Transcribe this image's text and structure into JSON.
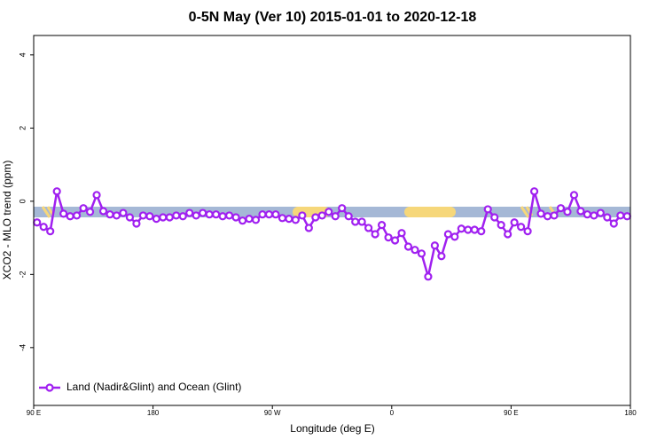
{
  "chart_data": {
    "type": "line",
    "title": "0-5N May (Ver 10)   2015-01-01 to 2020-12-18",
    "x_label": "Longitude (deg E)",
    "y_label": "XCO2 - MLO trend (ppm)",
    "x": [
      92.5,
      97.5,
      102.5,
      107.5,
      112.5,
      117.5,
      122.5,
      127.5,
      132.5,
      137.5,
      142.5,
      147.5,
      152.5,
      157.5,
      162.5,
      167.5,
      172.5,
      177.5,
      182.5,
      187.5,
      192.5,
      197.5,
      202.5,
      207.5,
      212.5,
      217.5,
      222.5,
      227.5,
      232.5,
      237.5,
      242.5,
      247.5,
      252.5,
      257.5,
      262.5,
      267.5,
      272.5,
      277.5,
      282.5,
      287.5,
      292.5,
      297.5,
      302.5,
      307.5,
      312.5,
      317.5,
      322.5,
      327.5,
      332.5,
      337.5,
      342.5,
      347.5,
      352.5,
      357.5,
      362.5,
      367.5,
      372.5,
      377.5,
      382.5,
      387.5,
      392.5,
      397.5,
      402.5,
      407.5,
      412.5,
      417.5,
      422.5,
      427.5,
      432.5,
      437.5,
      442.5,
      447.5,
      452.5,
      457.5,
      462.5,
      467.5,
      472.5,
      477.5,
      482.5,
      487.5,
      492.5,
      497.5,
      502.5,
      507.5,
      512.5,
      517.5,
      522.5,
      527.5,
      532.5,
      537.5
    ],
    "series": [
      {
        "name": "Land (Nadir&Glint) and Ocean (Glint)",
        "color": "#a020f0",
        "values": [
          -0.58,
          -0.7,
          -0.82,
          0.27,
          -0.34,
          -0.41,
          -0.39,
          -0.19,
          -0.29,
          0.17,
          -0.27,
          -0.36,
          -0.39,
          -0.32,
          -0.44,
          -0.61,
          -0.39,
          -0.41,
          -0.48,
          -0.44,
          -0.44,
          -0.39,
          -0.41,
          -0.32,
          -0.39,
          -0.32,
          -0.36,
          -0.36,
          -0.41,
          -0.39,
          -0.44,
          -0.53,
          -0.48,
          -0.51,
          -0.36,
          -0.36,
          -0.36,
          -0.46,
          -0.48,
          -0.51,
          -0.39,
          -0.73,
          -0.44,
          -0.39,
          -0.29,
          -0.41,
          -0.19,
          -0.41,
          -0.56,
          -0.56,
          -0.73,
          -0.9,
          -0.65,
          -0.99,
          -1.07,
          -0.87,
          -1.24,
          -1.33,
          -1.43,
          -2.06,
          -1.21,
          -1.5,
          -0.9,
          -0.97,
          -0.75,
          -0.78,
          -0.78,
          -0.82,
          -0.22,
          -0.44,
          -0.65,
          -0.9,
          -0.58,
          -0.7,
          -0.82,
          0.27,
          -0.34,
          -0.41,
          -0.39,
          -0.19,
          -0.29,
          0.17,
          -0.27,
          -0.36,
          -0.39,
          -0.32,
          -0.44,
          -0.61,
          -0.39,
          -0.41
        ]
      }
    ],
    "xlim": [
      90,
      540
    ],
    "xticks": [
      {
        "value": 90,
        "label": "90 E"
      },
      {
        "value": 180,
        "label": "180"
      },
      {
        "value": 270,
        "label": "90 W"
      },
      {
        "value": 360,
        "label": "0"
      },
      {
        "value": 450,
        "label": "90 E"
      },
      {
        "value": 540,
        "label": "180"
      }
    ],
    "ylim": [
      -5.58,
      4.53
    ],
    "yticks": [
      -4,
      -2,
      0,
      2,
      4
    ],
    "legend": "bottom-left"
  }
}
